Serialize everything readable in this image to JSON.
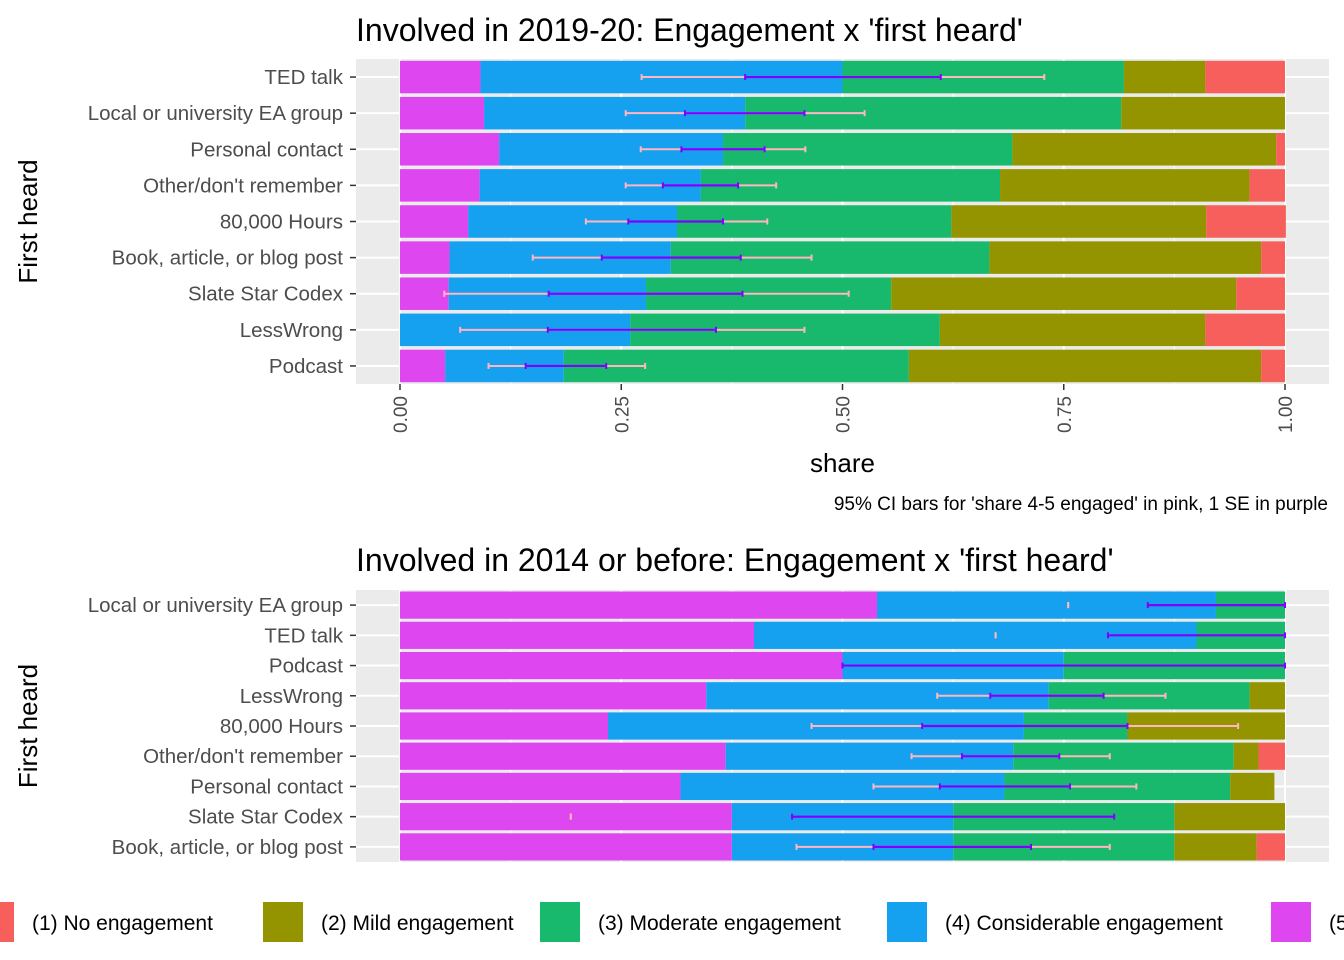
{
  "colors": {
    "panel_bg": "#ebebeb",
    "grid": "#ffffff",
    "ci95": "#ffb6c1",
    "se1": "#7f00ff",
    "axis_text": "#4d4d4d",
    "level_colors": [
      "#f8766d",
      "#a3a500",
      "#00bf7d",
      "#00b0f6",
      "#e76bf3"
    ],
    "level_colors_rendered": [
      "#f65f5b",
      "#939400",
      "#19b96d",
      "#15a0f0",
      "#de47ef"
    ]
  },
  "legend": {
    "entries": [
      "(1) No engagement",
      "(2) Mild engagement",
      "(3) Moderate engagement",
      "(4) Considerable engagement",
      "(5"
    ]
  },
  "chart_data": [
    {
      "type": "bar",
      "stacked": true,
      "orientation": "horizontal",
      "title": "Involved in 2019-20: Engagement x 'first heard'",
      "xlabel": "share",
      "ylabel": "First heard",
      "caption": "95% CI bars for 'share 4-5 engaged'  in pink, 1 SE in purple",
      "xlim": [
        0,
        1
      ],
      "xticks": [
        "0.00",
        "0.25",
        "0.50",
        "0.75",
        "1.00"
      ],
      "show_x_ticks": true,
      "grid": true,
      "categories": [
        "TED talk",
        "Local or university EA group",
        "Personal contact",
        "Other/don't remember",
        "80,000 Hours",
        "Book, article, or blog post",
        "Slate Star Codex",
        "LessWrong",
        "Podcast"
      ],
      "series": [
        {
          "name": "(1) No engagement",
          "values": [
            0.09,
            0.0,
            0.01,
            0.04,
            0.09,
            0.027,
            0.055,
            0.09,
            0.027
          ]
        },
        {
          "name": "(2) Mild engagement",
          "values": [
            0.092,
            0.185,
            0.298,
            0.282,
            0.288,
            0.307,
            0.39,
            0.3,
            0.398
          ]
        },
        {
          "name": "(3) Moderate engagement",
          "values": [
            0.318,
            0.425,
            0.327,
            0.338,
            0.31,
            0.36,
            0.277,
            0.35,
            0.39
          ]
        },
        {
          "name": "(4) Considerable engagement",
          "values": [
            0.409,
            0.295,
            0.253,
            0.25,
            0.236,
            0.25,
            0.223,
            0.26,
            0.134
          ]
        },
        {
          "name": "(5",
          "values": [
            0.091,
            0.095,
            0.112,
            0.09,
            0.077,
            0.056,
            0.055,
            0.0,
            0.051
          ]
        }
      ],
      "ci95": [
        [
          0.273,
          0.728
        ],
        [
          0.255,
          0.525
        ],
        [
          0.272,
          0.458
        ],
        [
          0.255,
          0.425
        ],
        [
          0.21,
          0.415
        ],
        [
          0.15,
          0.465
        ],
        [
          0.05,
          0.507
        ],
        [
          0.068,
          0.457
        ],
        [
          0.1,
          0.277
        ]
      ],
      "se1": [
        [
          0.39,
          0.611
        ],
        [
          0.322,
          0.457
        ],
        [
          0.318,
          0.412
        ],
        [
          0.297,
          0.382
        ],
        [
          0.258,
          0.365
        ],
        [
          0.228,
          0.385
        ],
        [
          0.168,
          0.387
        ],
        [
          0.167,
          0.357
        ],
        [
          0.142,
          0.233
        ]
      ]
    },
    {
      "type": "bar",
      "stacked": true,
      "orientation": "horizontal",
      "title": "Involved in 2014 or before: Engagement x 'first heard'",
      "xlabel": "",
      "ylabel": "First heard",
      "xlim": [
        0,
        1
      ],
      "show_x_ticks": false,
      "grid": true,
      "categories": [
        "Local or university EA group",
        "TED talk",
        "Podcast",
        "LessWrong",
        "80,000 Hours",
        "Other/don't remember",
        "Personal contact",
        "Slate Star Codex",
        "Book, article, or blog post"
      ],
      "series": [
        {
          "name": "(1) No engagement",
          "values": [
            0.0,
            0.0,
            0.0,
            0.0,
            0.0,
            0.03,
            0.0,
            0.0,
            0.032
          ]
        },
        {
          "name": "(2) Mild engagement",
          "values": [
            0.0,
            0.0,
            0.0,
            0.04,
            0.178,
            0.028,
            0.05,
            0.125,
            0.093
          ]
        },
        {
          "name": "(3) Moderate engagement",
          "values": [
            0.078,
            0.1,
            0.25,
            0.227,
            0.117,
            0.249,
            0.255,
            0.25,
            0.25
          ]
        },
        {
          "name": "(4) Considerable engagement",
          "values": [
            0.383,
            0.5,
            0.25,
            0.387,
            0.47,
            0.325,
            0.366,
            0.25,
            0.25
          ]
        },
        {
          "name": "(5",
          "values": [
            0.539,
            0.4,
            0.5,
            0.346,
            0.235,
            0.368,
            0.317,
            0.375,
            0.375
          ]
        }
      ],
      "ci95": [
        [
          0.755,
          0.755
        ],
        [
          0.673,
          0.673
        ],
        [
          0.5,
          1.0
        ],
        [
          0.607,
          0.865
        ],
        [
          0.465,
          0.947
        ],
        [
          0.578,
          0.802
        ],
        [
          0.535,
          0.832
        ],
        [
          0.193,
          0.193
        ],
        [
          0.448,
          0.802
        ]
      ],
      "se1": [
        [
          0.845,
          1.0
        ],
        [
          0.8,
          1.0
        ],
        [
          0.5,
          1.0
        ],
        [
          0.667,
          0.795
        ],
        [
          0.59,
          0.822
        ],
        [
          0.635,
          0.745
        ],
        [
          0.61,
          0.757
        ],
        [
          0.443,
          0.807
        ],
        [
          0.535,
          0.713
        ]
      ]
    }
  ]
}
